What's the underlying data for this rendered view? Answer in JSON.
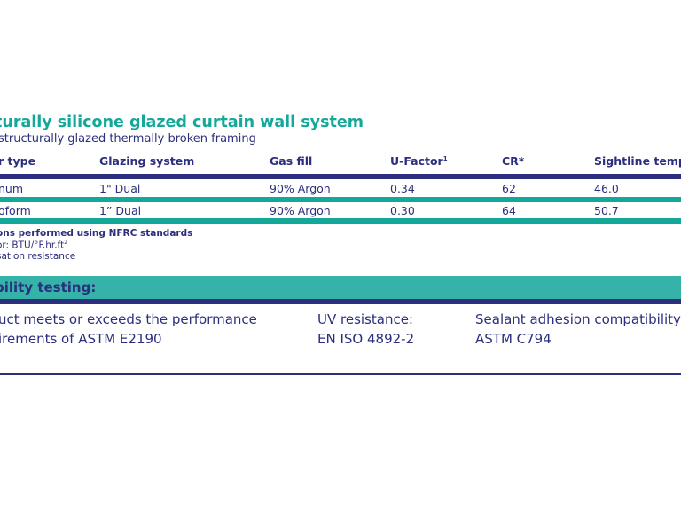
{
  "title": "turally silicone glazed curtain wall system",
  "subtitle": "structurally glazed thermally broken framing",
  "table": {
    "headers": {
      "frame_type": "r type",
      "glazing_system": "Glazing system",
      "gas_fill": "Gas fill",
      "u_factor": "U-Factor",
      "u_factor_sup": "1",
      "cr": "CR*",
      "sightline_temp": "Sightline temp"
    },
    "rows": [
      {
        "frame_type": "num",
        "glazing_system": "1\" Dual",
        "gas_fill": "90% Argon",
        "u_factor": "0.34",
        "cr": "62",
        "sightline_temp": "46.0"
      },
      {
        "frame_type": "oform",
        "glazing_system": "1” Dual",
        "gas_fill": "90% Argon",
        "u_factor": "0.30",
        "cr": "64",
        "sightline_temp": "50.7"
      }
    ]
  },
  "notes": {
    "line1": "ons performed using NFRC standards",
    "line2_prefix": "or: BTU/°F.hr.ft",
    "line2_sup": "2",
    "line3": "sation resistance"
  },
  "section": {
    "title": "bility testing:"
  },
  "testing": {
    "col1_line1": "uct meets or exceeds the performance",
    "col1_line2": "irements of ASTM E2190",
    "col2_line1": "UV resistance:",
    "col2_line2": "EN ISO 4892-2",
    "col3_line1": "Sealant adhesion compatibility:",
    "col3_line2": "ASTM C794"
  },
  "colors": {
    "navy": "#2b2f7d",
    "teal": "#14a89a",
    "section_band": "#35b3a9"
  }
}
